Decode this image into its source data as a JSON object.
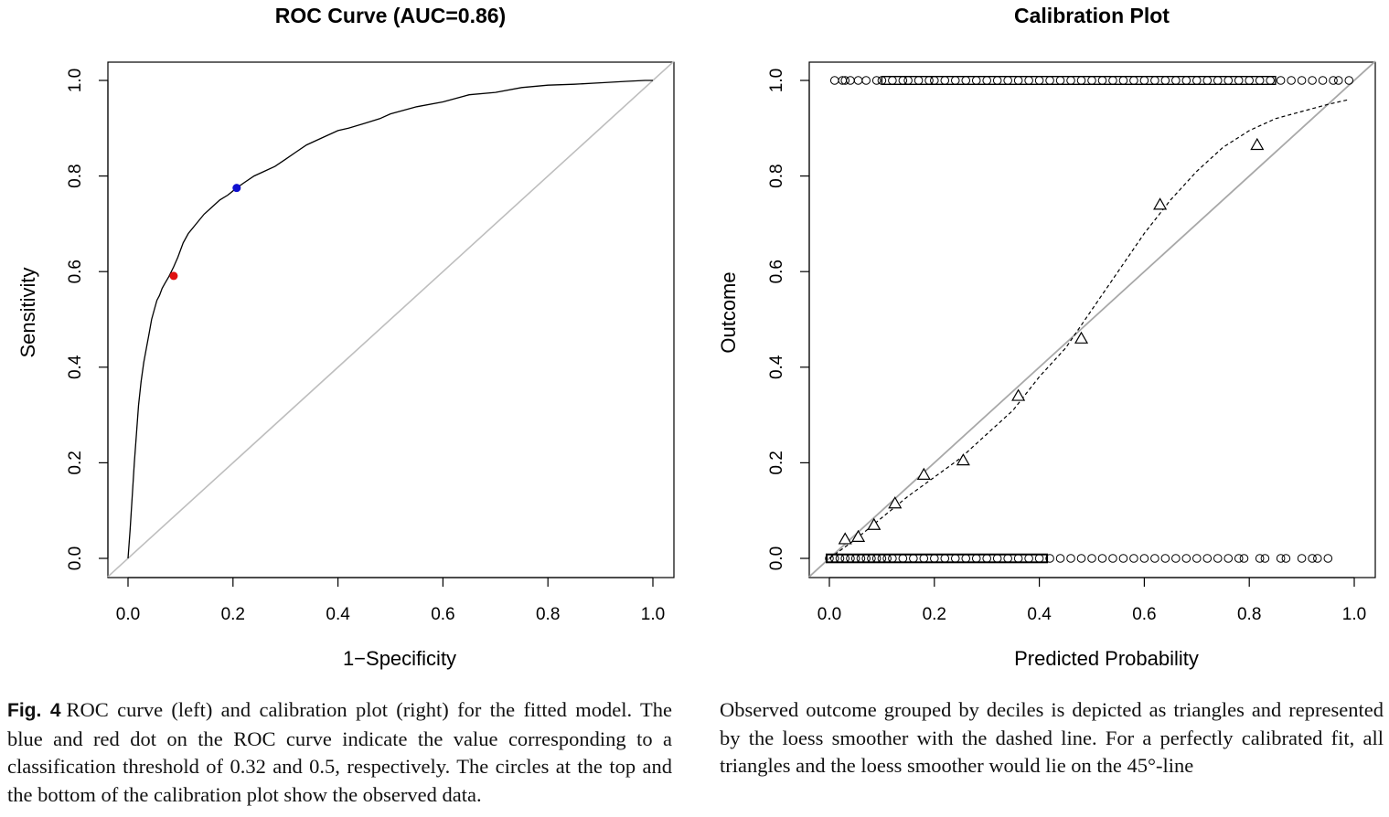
{
  "chart_data": [
    {
      "type": "line",
      "title": "ROC Curve (AUC=0.86)",
      "xlabel": "1−Specificity",
      "ylabel": "Sensitivity",
      "xlim": [
        0,
        1
      ],
      "ylim": [
        0,
        1
      ],
      "xticks": [
        "0.0",
        "0.2",
        "0.4",
        "0.6",
        "0.8",
        "1.0"
      ],
      "yticks": [
        "0.0",
        "0.2",
        "0.4",
        "0.6",
        "0.8",
        "1.0"
      ],
      "grid": false,
      "series": [
        {
          "x": [
            0.0,
            0.004,
            0.008,
            0.012,
            0.016,
            0.02,
            0.025,
            0.03,
            0.035,
            0.04,
            0.045,
            0.05,
            0.055,
            0.06,
            0.065,
            0.07,
            0.078,
            0.087,
            0.095,
            0.105,
            0.115,
            0.13,
            0.145,
            0.16,
            0.175,
            0.19,
            0.207,
            0.22,
            0.24,
            0.26,
            0.28,
            0.3,
            0.32,
            0.34,
            0.36,
            0.38,
            0.4,
            0.42,
            0.45,
            0.48,
            0.5,
            0.55,
            0.6,
            0.65,
            0.7,
            0.75,
            0.8,
            0.85,
            0.9,
            0.95,
            0.985,
            1.0
          ],
          "y": [
            0.0,
            0.06,
            0.13,
            0.2,
            0.26,
            0.32,
            0.37,
            0.41,
            0.44,
            0.47,
            0.5,
            0.52,
            0.54,
            0.55,
            0.565,
            0.575,
            0.59,
            0.61,
            0.63,
            0.66,
            0.68,
            0.7,
            0.72,
            0.735,
            0.75,
            0.76,
            0.775,
            0.785,
            0.8,
            0.81,
            0.82,
            0.835,
            0.85,
            0.865,
            0.875,
            0.885,
            0.895,
            0.9,
            0.91,
            0.92,
            0.93,
            0.945,
            0.955,
            0.97,
            0.975,
            0.985,
            0.99,
            0.992,
            0.995,
            0.998,
            1.0,
            1.0
          ]
        },
        {
          "x": [
            0,
            1
          ],
          "y": [
            0,
            1
          ],
          "color": "#bebebe"
        }
      ],
      "points": [
        {
          "x": 0.207,
          "y": 0.775,
          "color": "#1010d0"
        },
        {
          "x": 0.087,
          "y": 0.591,
          "color": "#e01010"
        }
      ]
    },
    {
      "type": "scatter",
      "title": "Calibration Plot",
      "xlabel": "Predicted Probability",
      "ylabel": "Outcome",
      "xlim": [
        0,
        1
      ],
      "ylim": [
        0,
        1
      ],
      "xticks": [
        "0.0",
        "0.2",
        "0.4",
        "0.6",
        "0.8",
        "1.0"
      ],
      "yticks": [
        "0.0",
        "0.2",
        "0.4",
        "0.6",
        "0.8",
        "1.0"
      ],
      "grid": false,
      "observed_top_x": [
        0.01,
        0.025,
        0.03,
        0.04,
        0.055,
        0.07,
        0.09,
        0.1,
        0.12,
        0.14,
        0.15,
        0.17,
        0.19,
        0.2,
        0.22,
        0.24,
        0.26,
        0.28,
        0.3,
        0.32,
        0.34,
        0.36,
        0.38,
        0.4,
        0.42,
        0.44,
        0.46,
        0.48,
        0.5,
        0.52,
        0.54,
        0.56,
        0.58,
        0.6,
        0.62,
        0.64,
        0.66,
        0.68,
        0.7,
        0.72,
        0.74,
        0.76,
        0.78,
        0.8,
        0.82,
        0.84,
        0.86,
        0.88,
        0.9,
        0.92,
        0.94,
        0.96,
        0.97,
        0.99
      ],
      "observed_bottom_x": [
        0.0,
        0.01,
        0.02,
        0.03,
        0.04,
        0.05,
        0.06,
        0.07,
        0.08,
        0.09,
        0.1,
        0.11,
        0.12,
        0.14,
        0.16,
        0.18,
        0.2,
        0.22,
        0.24,
        0.26,
        0.28,
        0.3,
        0.32,
        0.34,
        0.36,
        0.38,
        0.4,
        0.42,
        0.44,
        0.46,
        0.48,
        0.5,
        0.52,
        0.54,
        0.56,
        0.58,
        0.6,
        0.62,
        0.64,
        0.66,
        0.68,
        0.7,
        0.72,
        0.74,
        0.76,
        0.78,
        0.79,
        0.82,
        0.83,
        0.86,
        0.87,
        0.9,
        0.92,
        0.93,
        0.95
      ],
      "deciles": {
        "x": [
          0.03,
          0.055,
          0.085,
          0.125,
          0.18,
          0.255,
          0.36,
          0.48,
          0.63,
          0.815
        ],
        "y": [
          0.04,
          0.045,
          0.07,
          0.115,
          0.175,
          0.205,
          0.34,
          0.46,
          0.74,
          0.865
        ]
      },
      "loess": {
        "x": [
          0.0,
          0.05,
          0.1,
          0.15,
          0.2,
          0.25,
          0.3,
          0.35,
          0.4,
          0.45,
          0.5,
          0.55,
          0.6,
          0.65,
          0.7,
          0.75,
          0.8,
          0.85,
          0.9,
          0.95,
          0.99
        ],
        "y": [
          0.0,
          0.04,
          0.085,
          0.13,
          0.17,
          0.21,
          0.26,
          0.31,
          0.38,
          0.44,
          0.52,
          0.6,
          0.68,
          0.75,
          0.81,
          0.86,
          0.895,
          0.92,
          0.935,
          0.95,
          0.96
        ]
      },
      "reference_line": {
        "x": [
          0,
          1
        ],
        "y": [
          0,
          1
        ],
        "color": "#a8a8a8"
      }
    }
  ],
  "caption": {
    "label": "Fig. 4",
    "left_text": "ROC curve (left) and calibration plot (right) for the fitted model. The blue and red dot on the ROC curve indicate the value corresponding to a classification threshold of 0.32 and 0.5, respectively. The circles at the top and the bottom of the calibration plot show the observed data.",
    "right_text": "Observed outcome grouped by deciles is depicted as triangles and represented by the loess smoother with the dashed line. For a perfectly calibrated fit, all triangles and the loess smoother would lie on the 45°-line"
  }
}
